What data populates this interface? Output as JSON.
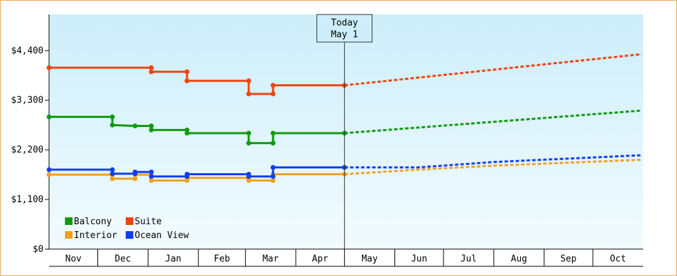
{
  "chart_data": {
    "type": "line",
    "title": "",
    "xlabel": "",
    "ylabel": "",
    "y_ticks": [
      "$0",
      "$1,100",
      "$2,200",
      "$3,300",
      "$4,400"
    ],
    "y_tick_values": [
      0,
      1100,
      2200,
      3300,
      4400
    ],
    "ylim": [
      0,
      5200
    ],
    "x_range": [
      "2023-11-01",
      "2024-10-31"
    ],
    "months": [
      "Nov",
      "Dec",
      "Jan",
      "Feb",
      "Mar",
      "Apr",
      "May",
      "Jun",
      "Jul",
      "Aug",
      "Sep",
      "Oct"
    ],
    "today": {
      "line1": "Today",
      "line2": "May 1",
      "date": "2024-05-01"
    },
    "legend_placement": "bottom-left",
    "grid": false,
    "series": [
      {
        "name": "Balcony",
        "color": "#109910",
        "points": [
          [
            "2023-11-01",
            2930
          ],
          [
            "2023-12-10",
            2930
          ],
          [
            "2023-12-10",
            2750
          ],
          [
            "2023-12-24",
            2730
          ],
          [
            "2024-01-03",
            2730
          ],
          [
            "2024-01-03",
            2640
          ],
          [
            "2024-01-25",
            2640
          ],
          [
            "2024-01-25",
            2570
          ],
          [
            "2024-03-03",
            2570
          ],
          [
            "2024-03-03",
            2350
          ],
          [
            "2024-03-18",
            2350
          ],
          [
            "2024-03-18",
            2570
          ],
          [
            "2024-05-01",
            2570
          ]
        ],
        "forecast": [
          [
            "2024-05-01",
            2570
          ],
          [
            "2024-10-31",
            3070
          ]
        ]
      },
      {
        "name": "Suite",
        "color": "#ee4411",
        "points": [
          [
            "2023-11-01",
            4020
          ],
          [
            "2024-01-03",
            4020
          ],
          [
            "2024-01-03",
            3930
          ],
          [
            "2024-01-25",
            3930
          ],
          [
            "2024-01-25",
            3730
          ],
          [
            "2024-03-03",
            3730
          ],
          [
            "2024-03-03",
            3440
          ],
          [
            "2024-03-18",
            3440
          ],
          [
            "2024-03-18",
            3630
          ],
          [
            "2024-05-01",
            3630
          ]
        ],
        "forecast": [
          [
            "2024-05-01",
            3630
          ],
          [
            "2024-10-31",
            4320
          ]
        ]
      },
      {
        "name": "Interior",
        "color": "#f0a020",
        "points": [
          [
            "2023-11-01",
            1650
          ],
          [
            "2023-12-10",
            1650
          ],
          [
            "2023-12-10",
            1560
          ],
          [
            "2023-12-24",
            1560
          ],
          [
            "2023-12-24",
            1650
          ],
          [
            "2024-01-03",
            1650
          ],
          [
            "2024-01-03",
            1520
          ],
          [
            "2024-01-25",
            1520
          ],
          [
            "2024-01-25",
            1580
          ],
          [
            "2024-03-03",
            1580
          ],
          [
            "2024-03-03",
            1520
          ],
          [
            "2024-03-18",
            1520
          ],
          [
            "2024-03-18",
            1660
          ],
          [
            "2024-05-01",
            1660
          ]
        ],
        "forecast": [
          [
            "2024-05-01",
            1660
          ],
          [
            "2024-06-15",
            1760
          ],
          [
            "2024-08-01",
            1850
          ],
          [
            "2024-10-31",
            1980
          ]
        ]
      },
      {
        "name": "Ocean View",
        "color": "#1040ee",
        "points": [
          [
            "2023-11-01",
            1760
          ],
          [
            "2023-12-10",
            1760
          ],
          [
            "2023-12-10",
            1670
          ],
          [
            "2023-12-24",
            1670
          ],
          [
            "2023-12-24",
            1710
          ],
          [
            "2024-01-03",
            1710
          ],
          [
            "2024-01-03",
            1610
          ],
          [
            "2024-01-25",
            1610
          ],
          [
            "2024-01-25",
            1660
          ],
          [
            "2024-03-03",
            1660
          ],
          [
            "2024-03-03",
            1610
          ],
          [
            "2024-03-18",
            1610
          ],
          [
            "2024-03-18",
            1810
          ],
          [
            "2024-05-01",
            1810
          ]
        ],
        "forecast": [
          [
            "2024-05-01",
            1810
          ],
          [
            "2024-06-15",
            1810
          ],
          [
            "2024-08-01",
            1930
          ],
          [
            "2024-10-31",
            2080
          ]
        ]
      }
    ]
  }
}
